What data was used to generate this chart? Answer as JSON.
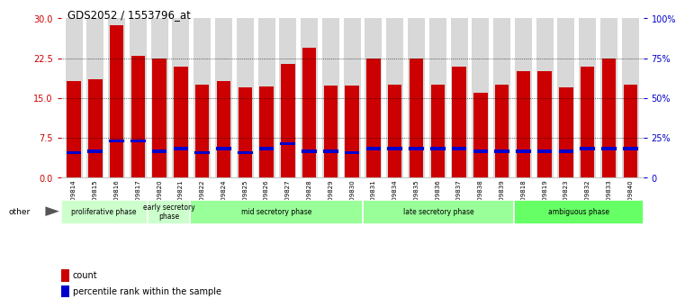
{
  "title": "GDS2052 / 1553796_at",
  "samples": [
    "GSM109814",
    "GSM109815",
    "GSM109816",
    "GSM109817",
    "GSM109820",
    "GSM109821",
    "GSM109822",
    "GSM109824",
    "GSM109825",
    "GSM109826",
    "GSM109827",
    "GSM109828",
    "GSM109829",
    "GSM109830",
    "GSM109831",
    "GSM109834",
    "GSM109835",
    "GSM109836",
    "GSM109837",
    "GSM109838",
    "GSM109839",
    "GSM109818",
    "GSM109819",
    "GSM109823",
    "GSM109832",
    "GSM109833",
    "GSM109840"
  ],
  "count_values": [
    18.2,
    18.5,
    28.8,
    23.0,
    22.5,
    21.0,
    17.5,
    18.2,
    17.0,
    17.2,
    21.5,
    24.5,
    17.3,
    17.3,
    22.5,
    17.5,
    22.5,
    17.5,
    21.0,
    16.0,
    17.5,
    20.0,
    20.0,
    17.0,
    21.0,
    22.5,
    17.5
  ],
  "percentile_values": [
    4.8,
    5.0,
    7.0,
    7.0,
    5.0,
    5.5,
    4.8,
    5.5,
    4.8,
    5.5,
    6.5,
    5.0,
    5.0,
    4.8,
    5.5,
    5.5,
    5.5,
    5.5,
    5.5,
    5.0,
    5.0,
    5.0,
    5.0,
    5.0,
    5.5,
    5.5,
    5.5
  ],
  "phases": [
    {
      "label": "proliferative phase",
      "start": 0,
      "end": 4,
      "color": "#ccffcc"
    },
    {
      "label": "early secretory\nphase",
      "start": 4,
      "end": 6,
      "color": "#ccffcc"
    },
    {
      "label": "mid secretory phase",
      "start": 6,
      "end": 14,
      "color": "#99ff99"
    },
    {
      "label": "late secretory phase",
      "start": 14,
      "end": 21,
      "color": "#99ff99"
    },
    {
      "label": "ambiguous phase",
      "start": 21,
      "end": 27,
      "color": "#66ff66"
    }
  ],
  "ylim_left": [
    0,
    30
  ],
  "ylim_right": [
    0,
    100
  ],
  "yticks_left": [
    0,
    7.5,
    15,
    22.5,
    30
  ],
  "yticks_right": [
    0,
    25,
    50,
    75,
    100
  ],
  "bar_color": "#cc0000",
  "percentile_color": "#0000cc",
  "bg_color": "#ffffff",
  "bar_bg_color": "#d8d8d8",
  "title_color": "#000000",
  "left_tick_color": "#cc0000",
  "right_tick_color": "#0000cc",
  "phase_colors": [
    "#ccffcc",
    "#ccffcc",
    "#99ff99",
    "#99ff99",
    "#66ff66"
  ]
}
